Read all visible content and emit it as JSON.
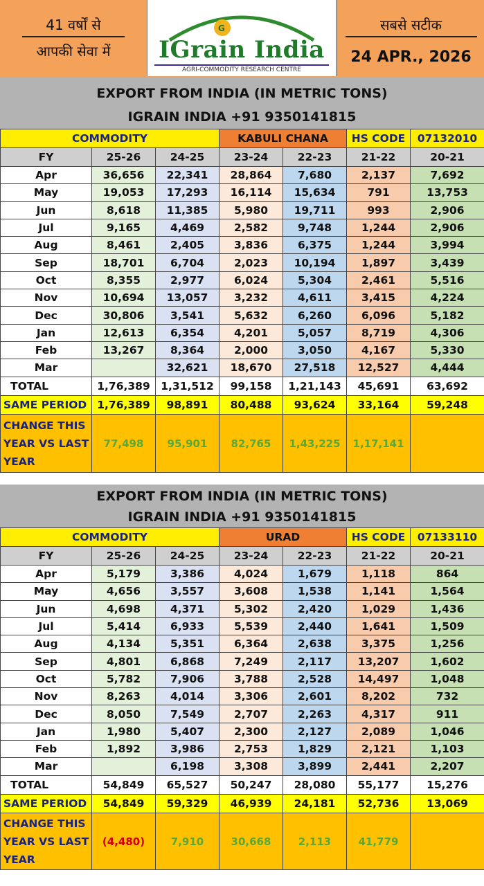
{
  "header": {
    "left_line1": "41 वर्षों से",
    "left_line2": "आपकी सेवा में",
    "brand": "IGrain India",
    "tagline": "AGRI-COMMODITY RESEARCH CENTRE",
    "right_line1": "सबसे सटीक",
    "date": "24 APR., 2026"
  },
  "tables": [
    {
      "title1": "EXPORT FROM INDIA (IN METRIC TONS)",
      "title2": "IGRAIN INDIA +91 9350141815",
      "commodity_label": "COMMODITY",
      "commodity": "KABULI CHANA",
      "hs_label": "HS CODE",
      "hs_code": "07132010",
      "fy_label": "FY",
      "years": [
        "25-26",
        "24-25",
        "23-24",
        "22-23",
        "21-22",
        "20-21"
      ],
      "months": [
        {
          "m": "Apr",
          "v": [
            "36,656",
            "22,341",
            "28,864",
            "7,680",
            "2,137",
            "7,692"
          ]
        },
        {
          "m": "May",
          "v": [
            "19,053",
            "17,293",
            "16,114",
            "15,634",
            "791",
            "13,753"
          ]
        },
        {
          "m": "Jun",
          "v": [
            "8,618",
            "11,385",
            "5,980",
            "19,711",
            "993",
            "2,906"
          ]
        },
        {
          "m": "Jul",
          "v": [
            "9,165",
            "4,469",
            "2,582",
            "9,748",
            "1,244",
            "2,906"
          ]
        },
        {
          "m": "Aug",
          "v": [
            "8,461",
            "2,405",
            "3,836",
            "6,375",
            "1,244",
            "3,994"
          ]
        },
        {
          "m": "Sep",
          "v": [
            "18,701",
            "6,704",
            "2,023",
            "10,194",
            "1,897",
            "3,439"
          ]
        },
        {
          "m": "Oct",
          "v": [
            "8,355",
            "2,977",
            "6,024",
            "5,304",
            "2,461",
            "5,516"
          ]
        },
        {
          "m": "Nov",
          "v": [
            "10,694",
            "13,057",
            "3,232",
            "4,611",
            "3,415",
            "4,224"
          ]
        },
        {
          "m": "Dec",
          "v": [
            "30,806",
            "3,541",
            "5,632",
            "6,260",
            "6,096",
            "5,182"
          ]
        },
        {
          "m": "Jan",
          "v": [
            "12,613",
            "6,354",
            "4,201",
            "5,057",
            "8,719",
            "4,306"
          ]
        },
        {
          "m": "Feb",
          "v": [
            "13,267",
            "8,364",
            "2,000",
            "3,050",
            "4,167",
            "5,330"
          ]
        },
        {
          "m": "Mar",
          "v": [
            "",
            "32,621",
            "18,670",
            "27,518",
            "12,527",
            "4,444"
          ]
        }
      ],
      "total_label": "TOTAL",
      "total": [
        "1,76,389",
        "1,31,512",
        "99,158",
        "1,21,143",
        "45,691",
        "63,692"
      ],
      "same_label": "SAME PERIOD",
      "same": [
        "1,76,389",
        "98,891",
        "80,488",
        "93,624",
        "33,164",
        "59,248"
      ],
      "change_label": "CHANGE THIS YEAR VS LAST YEAR",
      "change": [
        "77,498",
        "95,901",
        "82,765",
        "1,43,225",
        "1,17,141",
        ""
      ]
    },
    {
      "title1": "EXPORT FROM INDIA (IN METRIC TONS)",
      "title2": "IGRAIN INDIA +91 9350141815",
      "commodity_label": "COMMODITY",
      "commodity": "URAD",
      "hs_label": "HS CODE",
      "hs_code": "07133110",
      "fy_label": "FY",
      "years": [
        "25-26",
        "24-25",
        "23-24",
        "22-23",
        "21-22",
        "20-21"
      ],
      "months": [
        {
          "m": "Apr",
          "v": [
            "5,179",
            "3,386",
            "4,024",
            "1,679",
            "1,118",
            "864"
          ]
        },
        {
          "m": "May",
          "v": [
            "4,656",
            "3,557",
            "3,608",
            "1,538",
            "1,141",
            "1,564"
          ]
        },
        {
          "m": "Jun",
          "v": [
            "4,698",
            "4,371",
            "5,302",
            "2,420",
            "1,029",
            "1,436"
          ]
        },
        {
          "m": "Jul",
          "v": [
            "5,414",
            "6,933",
            "5,539",
            "2,440",
            "1,641",
            "1,509"
          ]
        },
        {
          "m": "Aug",
          "v": [
            "4,134",
            "5,351",
            "6,364",
            "2,638",
            "3,375",
            "1,256"
          ]
        },
        {
          "m": "Sep",
          "v": [
            "4,801",
            "6,868",
            "7,249",
            "2,117",
            "13,207",
            "1,602"
          ]
        },
        {
          "m": "Oct",
          "v": [
            "5,782",
            "7,906",
            "3,788",
            "2,528",
            "14,497",
            "1,048"
          ]
        },
        {
          "m": "Nov",
          "v": [
            "8,263",
            "4,014",
            "3,306",
            "2,601",
            "8,202",
            "732"
          ]
        },
        {
          "m": "Dec",
          "v": [
            "8,050",
            "7,549",
            "2,707",
            "2,263",
            "4,317",
            "911"
          ]
        },
        {
          "m": "Jan",
          "v": [
            "1,980",
            "5,407",
            "2,300",
            "2,127",
            "2,089",
            "1,046"
          ]
        },
        {
          "m": "Feb",
          "v": [
            "1,892",
            "3,986",
            "2,753",
            "1,829",
            "2,121",
            "1,103"
          ]
        },
        {
          "m": "Mar",
          "v": [
            "",
            "6,198",
            "3,308",
            "3,899",
            "2,441",
            "2,207"
          ]
        }
      ],
      "total_label": "TOTAL",
      "total": [
        "54,849",
        "65,527",
        "50,247",
        "28,080",
        "55,177",
        "15,276"
      ],
      "same_label": "SAME PERIOD",
      "same": [
        "54,849",
        "59,329",
        "46,939",
        "24,181",
        "52,736",
        "13,069"
      ],
      "change_label": "CHANGE THIS YEAR VS LAST YEAR",
      "change": [
        "(4,480)",
        "7,910",
        "30,668",
        "2,113",
        "41,779",
        ""
      ]
    }
  ],
  "colors": {
    "header_orange": "#f4a259",
    "title_grey": "#b3b3b3",
    "yellow": "#ffee00",
    "commodity_orange": "#ee7f33",
    "change_orange": "#ffc000",
    "positive_green": "#58a83a",
    "negative_red": "#d00000"
  }
}
